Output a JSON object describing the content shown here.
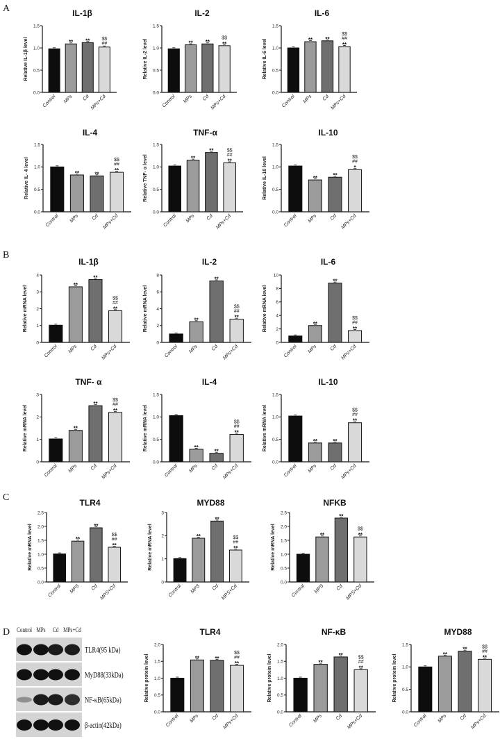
{
  "panels": [
    "A",
    "B",
    "C",
    "D"
  ],
  "colors": {
    "Control": "#0d0d0d",
    "MPs": "#9b9b9b",
    "Cd": "#6f6f6f",
    "MPs+Cd": "#d9d9d9",
    "axis": "#111111"
  },
  "blot": {
    "columns": [
      "Control",
      "MPs",
      "Cd",
      "MPs+Cd"
    ],
    "rows": [
      "TLR4(95 kDa)",
      "MyD88(33kDa)",
      "NF-κB(65kDa)",
      "β-actin(42kDa)"
    ]
  },
  "chart_data": [
    {
      "panel": "A",
      "type": "bar",
      "title": "IL-1β",
      "ylabel": "Relative IL-1β level",
      "categories": [
        "Control",
        "MPs",
        "Cd",
        "MPs+Cd"
      ],
      "values": [
        0.98,
        1.09,
        1.12,
        1.02
      ],
      "ylim": [
        0,
        1.5
      ],
      "yticks": [
        "0.0",
        "0.5",
        "1.0",
        "1.5"
      ],
      "annotations": [
        [],
        [
          "**"
        ],
        [
          "**"
        ],
        [
          "$$",
          "##"
        ]
      ]
    },
    {
      "panel": "A",
      "type": "bar",
      "title": "IL-2",
      "ylabel": "Relative IL-2 level",
      "categories": [
        "Control",
        "MPs",
        "Cd",
        "MPs+Cd"
      ],
      "values": [
        0.98,
        1.07,
        1.09,
        1.05
      ],
      "ylim": [
        0,
        1.5
      ],
      "yticks": [
        "0.0",
        "0.5",
        "1.0",
        "1.5"
      ],
      "annotations": [
        [],
        [
          "**"
        ],
        [
          "**"
        ],
        [
          "$$",
          "**"
        ]
      ]
    },
    {
      "panel": "A",
      "type": "bar",
      "title": "IL-6",
      "ylabel": "Relative IL-6 level",
      "categories": [
        "Control",
        "MPs",
        "Cd",
        "MPs+Cd"
      ],
      "values": [
        1.0,
        1.14,
        1.16,
        1.03
      ],
      "ylim": [
        0,
        1.5
      ],
      "yticks": [
        "0.0",
        "0.5",
        "1.0",
        "1.5"
      ],
      "annotations": [
        [],
        [
          "**"
        ],
        [
          "**"
        ],
        [
          "$$",
          "##",
          "**"
        ]
      ]
    },
    {
      "panel": "A",
      "type": "bar",
      "title": "IL-4",
      "ylabel": "Relative IL- 4 level",
      "categories": [
        "Control",
        "MPs",
        "Cd",
        "MPs+Cd"
      ],
      "values": [
        1.0,
        0.82,
        0.8,
        0.88
      ],
      "ylim": [
        0,
        1.5
      ],
      "yticks": [
        "0.0",
        "0.5",
        "1.0",
        "1.5"
      ],
      "annotations": [
        [],
        [
          "**"
        ],
        [
          "**"
        ],
        [
          "$$",
          "##",
          "**"
        ]
      ]
    },
    {
      "panel": "A",
      "type": "bar",
      "title": "TNF-α",
      "ylabel": "Relative TNF- α level",
      "categories": [
        "Control",
        "MPs",
        "Cd",
        "MPs+Cd"
      ],
      "values": [
        1.02,
        1.15,
        1.32,
        1.09
      ],
      "ylim": [
        0,
        1.5
      ],
      "yticks": [
        "0.0",
        "0.5",
        "1.0",
        "1.5"
      ],
      "annotations": [
        [],
        [
          "**"
        ],
        [
          "**"
        ],
        [
          "$$",
          "##",
          "**"
        ]
      ]
    },
    {
      "panel": "A",
      "type": "bar",
      "title": "IL-10",
      "ylabel": "Relative IL-10 level",
      "categories": [
        "Control",
        "MPs",
        "Cd",
        "MPs+Cd"
      ],
      "values": [
        1.02,
        0.71,
        0.77,
        0.94
      ],
      "ylim": [
        0,
        1.5
      ],
      "yticks": [
        "0.0",
        "0.5",
        "1.0",
        "1.5"
      ],
      "annotations": [
        [],
        [
          "**"
        ],
        [
          "**"
        ],
        [
          "$$",
          "##",
          "*"
        ]
      ]
    },
    {
      "panel": "B",
      "type": "bar",
      "title": "IL-1β",
      "ylabel": "Relative mRNA level",
      "categories": [
        "Control",
        "MPs",
        "Cd",
        "MPs+Cd"
      ],
      "values": [
        1.02,
        3.3,
        3.73,
        1.88
      ],
      "ylim": [
        0,
        4
      ],
      "yticks": [
        "0",
        "1",
        "2",
        "3",
        "4"
      ],
      "annotations": [
        [],
        [
          "**"
        ],
        [
          "**"
        ],
        [
          "$$",
          "##",
          "**"
        ]
      ]
    },
    {
      "panel": "B",
      "type": "bar",
      "title": "IL-2",
      "ylabel": "Relative mRNA level",
      "categories": [
        "Control",
        "MPs",
        "Cd",
        "MPs+Cd"
      ],
      "values": [
        1.0,
        2.45,
        7.3,
        2.75
      ],
      "ylim": [
        0,
        8
      ],
      "yticks": [
        "0",
        "2",
        "4",
        "6",
        "8"
      ],
      "annotations": [
        [],
        [
          "**"
        ],
        [
          "**"
        ],
        [
          "$$",
          "##",
          "**"
        ]
      ]
    },
    {
      "panel": "B",
      "type": "bar",
      "title": "IL-6",
      "ylabel": "Relative mRNA level",
      "categories": [
        "Control",
        "MPs",
        "Cd",
        "MPs+Cd"
      ],
      "values": [
        0.95,
        2.5,
        8.8,
        1.75
      ],
      "ylim": [
        0,
        10
      ],
      "yticks": [
        "0",
        "2",
        "4",
        "6",
        "8",
        "10"
      ],
      "annotations": [
        [],
        [
          "**"
        ],
        [
          "**"
        ],
        [
          "$$",
          "##",
          "**"
        ]
      ]
    },
    {
      "panel": "B",
      "type": "bar",
      "title": "TNF- α",
      "ylabel": "Relative mRNA level",
      "categories": [
        "Control",
        "MPs",
        "Cd",
        "MPs+Cd"
      ],
      "values": [
        1.02,
        1.4,
        2.5,
        2.2
      ],
      "ylim": [
        0,
        3
      ],
      "yticks": [
        "0",
        "1",
        "2",
        "3"
      ],
      "annotations": [
        [],
        [
          "**"
        ],
        [
          "**"
        ],
        [
          "$$",
          "##",
          "**"
        ]
      ]
    },
    {
      "panel": "B",
      "type": "bar",
      "title": "IL-4",
      "ylabel": "Relative mRNA level",
      "categories": [
        "Control",
        "MPs",
        "Cd",
        "MPs+Cd"
      ],
      "values": [
        1.03,
        0.28,
        0.19,
        0.61
      ],
      "ylim": [
        0,
        1.5
      ],
      "yticks": [
        "0.0",
        "0.5",
        "1.0",
        "1.5"
      ],
      "annotations": [
        [],
        [
          "**"
        ],
        [
          "**"
        ],
        [
          "$$",
          "##",
          "**"
        ]
      ]
    },
    {
      "panel": "B",
      "type": "bar",
      "title": "IL-10",
      "ylabel": "Relative mRNA level",
      "categories": [
        "Control",
        "MPs",
        "Cd",
        "MPs+Cd"
      ],
      "values": [
        1.02,
        0.42,
        0.42,
        0.87
      ],
      "ylim": [
        0,
        1.5
      ],
      "yticks": [
        "0.0",
        "0.5",
        "1.0",
        "1.5"
      ],
      "annotations": [
        [],
        [
          "**"
        ],
        [
          "**"
        ],
        [
          "$$",
          "##",
          "**"
        ]
      ]
    },
    {
      "panel": "C",
      "type": "bar",
      "title": "TLR4",
      "ylabel": "Relative mRNA level",
      "categories": [
        "Control",
        "MPS",
        "Cd",
        "MPS+Cd"
      ],
      "values": [
        1.01,
        1.47,
        1.95,
        1.25
      ],
      "ylim": [
        0,
        2.5
      ],
      "yticks": [
        "0.0",
        "0.5",
        "1.0",
        "1.5",
        "2.0",
        "2.5"
      ],
      "annotations": [
        [],
        [
          "**"
        ],
        [
          "**"
        ],
        [
          "$$",
          "##",
          "**"
        ]
      ]
    },
    {
      "panel": "C",
      "type": "bar",
      "title": "MYD88",
      "ylabel": "Relative mRNA level",
      "categories": [
        "Control",
        "MPS",
        "Cd",
        "MPS+Cd"
      ],
      "values": [
        1.01,
        1.89,
        2.63,
        1.38
      ],
      "ylim": [
        0,
        3
      ],
      "yticks": [
        "0",
        "1",
        "2",
        "3"
      ],
      "annotations": [
        [],
        [
          "**"
        ],
        [
          "**"
        ],
        [
          "$$",
          "##",
          "**"
        ]
      ]
    },
    {
      "panel": "C",
      "type": "bar",
      "title": "NFKB",
      "ylabel": "Relative mRNA level",
      "categories": [
        "Control",
        "MPS",
        "Cd",
        "MPS+Cd"
      ],
      "values": [
        1.0,
        1.62,
        2.3,
        1.62
      ],
      "ylim": [
        0,
        2.5
      ],
      "yticks": [
        "0.0",
        "0.5",
        "1.0",
        "1.5",
        "2.0",
        "2.5"
      ],
      "annotations": [
        [],
        [
          "**"
        ],
        [
          "**"
        ],
        [
          "$$",
          "**"
        ]
      ]
    },
    {
      "panel": "D",
      "type": "bar",
      "title": "TLR4",
      "ylabel": "Relative protein level",
      "categories": [
        "Control",
        "MPs",
        "Cd",
        "MPs+Cd"
      ],
      "values": [
        1.0,
        1.54,
        1.53,
        1.38
      ],
      "ylim": [
        0,
        2
      ],
      "yticks": [
        "0.0",
        "0.5",
        "1.0",
        "1.5",
        "2.0"
      ],
      "annotations": [
        [],
        [
          "**"
        ],
        [
          "**"
        ],
        [
          "$$",
          "##",
          "**"
        ]
      ]
    },
    {
      "panel": "D",
      "type": "bar",
      "title": "NF-κB",
      "ylabel": "Relative protein level",
      "categories": [
        "Control",
        "MPs",
        "Cd",
        "MPs+Cd"
      ],
      "values": [
        1.0,
        1.41,
        1.63,
        1.25
      ],
      "ylim": [
        0,
        2
      ],
      "yticks": [
        "0.0",
        "0.5",
        "1.0",
        "1.5",
        "2.0"
      ],
      "annotations": [
        [],
        [
          "**"
        ],
        [
          "**"
        ],
        [
          "$$",
          "##",
          "**"
        ]
      ]
    },
    {
      "panel": "D",
      "type": "bar",
      "title": "MYD88",
      "ylabel": "Relative protein level",
      "categories": [
        "Control",
        "MPs",
        "Cd",
        "MPs+Cd"
      ],
      "values": [
        1.0,
        1.24,
        1.35,
        1.17
      ],
      "ylim": [
        0,
        1.5
      ],
      "yticks": [
        "0.0",
        "0.5",
        "1.0",
        "1.5"
      ],
      "annotations": [
        [],
        [
          "**"
        ],
        [
          "**"
        ],
        [
          "$$",
          "##",
          "**"
        ]
      ]
    }
  ]
}
